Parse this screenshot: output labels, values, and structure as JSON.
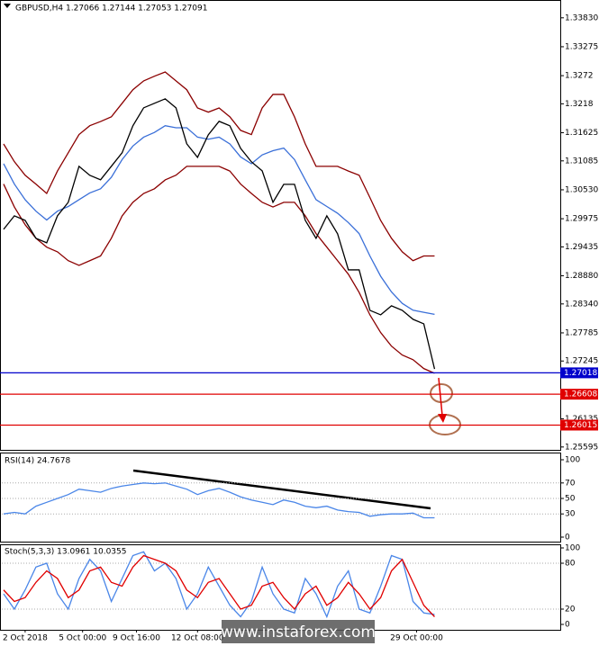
{
  "chart_data": [
    {
      "type": "line",
      "title": "GBPUSD,H4  1.27066 1.27144 1.27053 1.27091",
      "x": [
        0,
        3,
        6,
        9,
        12,
        15,
        18,
        21,
        24,
        27,
        30,
        33,
        36,
        39,
        42,
        45,
        48,
        51,
        54,
        57,
        60,
        63,
        66,
        69,
        72,
        75,
        78,
        81,
        84,
        87,
        90,
        93,
        96,
        99,
        102,
        105,
        108,
        111,
        114,
        117,
        120
      ],
      "xlim": [
        -0.5,
        155
      ],
      "xticks": [
        {
          "value": 6,
          "label": "2 Oct 2018"
        },
        {
          "value": 22,
          "label": "5 Oct 00:00"
        },
        {
          "value": 37,
          "label": "9 Oct 16:00"
        },
        {
          "value": 54,
          "label": "12 Oct 08:00"
        },
        {
          "value": 115,
          "label": "29 Oct 00:00"
        }
      ],
      "ylim": [
        1.2554,
        1.3412
      ],
      "yticks": [
        {
          "value": 1.3383,
          "label": "1.33830"
        },
        1.33275,
        1.3272,
        1.3218,
        1.31625,
        1.31085,
        {
          "value": 1.3053,
          "label": "1.30530"
        },
        1.29975,
        1.29435,
        {
          "value": 1.2888,
          "label": "1.28880"
        },
        {
          "value": 1.2834,
          "label": "1.28340"
        },
        1.27785,
        1.27245,
        1.26135,
        1.25595
      ],
      "series": [
        {
          "color": "#8b0000",
          "values": [
            1.3141,
            1.3107,
            1.3081,
            1.3064,
            1.3046,
            1.3089,
            1.3124,
            1.3159,
            1.3176,
            1.3184,
            1.3193,
            1.3219,
            1.3245,
            1.3262,
            1.3271,
            1.3279,
            1.3262,
            1.3245,
            1.321,
            1.3202,
            1.321,
            1.3193,
            1.3167,
            1.3159,
            1.321,
            1.3236,
            1.3236,
            1.3193,
            1.3141,
            1.3098,
            1.3098,
            1.3098,
            1.3089,
            1.3081,
            1.3038,
            1.2994,
            1.296,
            1.2934,
            1.2917,
            1.2926,
            1.2926
          ]
        },
        {
          "color": "#8b0000",
          "values": [
            1.3064,
            1.302,
            1.2986,
            1.296,
            1.2943,
            1.2934,
            1.2917,
            1.2908,
            1.2917,
            1.2926,
            1.296,
            1.3003,
            1.3029,
            1.3046,
            1.3055,
            1.3072,
            1.3081,
            1.3098,
            1.3098,
            1.3098,
            1.3098,
            1.3089,
            1.3064,
            1.3046,
            1.3029,
            1.302,
            1.3029,
            1.3029,
            1.3003,
            1.2969,
            1.2943,
            1.2917,
            1.2891,
            1.2856,
            1.2813,
            1.2779,
            1.2753,
            1.2736,
            1.2727,
            1.271,
            1.2701
          ]
        },
        {
          "color": "#3a6fd8",
          "values": [
            1.3103,
            1.3064,
            1.3034,
            1.3012,
            1.2995,
            1.3012,
            1.3021,
            1.3034,
            1.3047,
            1.3055,
            1.3077,
            1.3111,
            1.3137,
            1.3154,
            1.3163,
            1.3176,
            1.3172,
            1.3172,
            1.3154,
            1.315,
            1.3154,
            1.3141,
            1.3116,
            1.3103,
            1.312,
            1.3128,
            1.3133,
            1.3111,
            1.3072,
            1.3034,
            1.3021,
            1.3008,
            1.299,
            1.2969,
            1.2926,
            1.2887,
            1.2857,
            1.2835,
            1.2822,
            1.2818,
            1.2814
          ]
        },
        {
          "color": "#000000",
          "values": [
            1.29772,
            1.30031,
            1.29944,
            1.29599,
            1.29513,
            1.30031,
            1.3029,
            1.30981,
            1.30808,
            1.30722,
            1.30981,
            1.3124,
            1.31758,
            1.32103,
            1.3219,
            1.32276,
            1.32103,
            1.31412,
            1.31153,
            1.31585,
            1.31844,
            1.31758,
            1.31326,
            1.31067,
            1.30894,
            1.3029,
            1.30635,
            1.30635,
            1.29944,
            1.29599,
            1.30031,
            1.29685,
            1.28994,
            1.28994,
            1.28217,
            1.28131,
            1.28304,
            1.28217,
            1.28045,
            1.27958,
            1.27091
          ]
        }
      ],
      "levels": [
        {
          "value": 1.27018,
          "color": "#0000cc"
        },
        {
          "value": 1.26608,
          "color": "#e00000"
        },
        {
          "value": 1.26015,
          "color": "#e00000"
        }
      ]
    },
    {
      "type": "line",
      "title": "RSI(14) 24.7678",
      "x": [
        0,
        3,
        6,
        9,
        12,
        15,
        18,
        21,
        24,
        27,
        30,
        33,
        36,
        39,
        42,
        45,
        48,
        51,
        54,
        57,
        60,
        63,
        66,
        69,
        72,
        75,
        78,
        81,
        84,
        87,
        90,
        93,
        96,
        99,
        102,
        105,
        108,
        111,
        114,
        117,
        120
      ],
      "xlim": [
        -0.5,
        155
      ],
      "ylim": [
        0,
        100
      ],
      "yticks": [
        100,
        70,
        50,
        30,
        0
      ],
      "series": [
        {
          "color": "#4a86e8",
          "values": [
            30,
            32,
            30,
            40,
            45,
            50,
            55,
            62,
            60,
            58,
            63,
            66,
            68,
            70,
            69,
            70,
            66,
            62,
            55,
            60,
            63,
            58,
            52,
            48,
            45,
            42,
            48,
            45,
            40,
            38,
            40,
            35,
            33,
            32,
            27,
            29,
            30,
            30,
            31,
            25,
            25
          ]
        }
      ]
    },
    {
      "type": "line",
      "title": "Stoch(5,3,3) 13.0961 10.0355",
      "x": [
        0,
        3,
        6,
        9,
        12,
        15,
        18,
        21,
        24,
        27,
        30,
        33,
        36,
        39,
        42,
        45,
        48,
        51,
        54,
        57,
        60,
        63,
        66,
        69,
        72,
        75,
        78,
        81,
        84,
        87,
        90,
        93,
        96,
        99,
        102,
        105,
        108,
        111,
        114,
        117,
        120
      ],
      "xlim": [
        -0.5,
        155
      ],
      "ylim": [
        0,
        100
      ],
      "yticks": [
        100,
        80,
        20,
        0
      ],
      "series": [
        {
          "color": "#4a86e8",
          "values": [
            40,
            20,
            45,
            75,
            80,
            40,
            20,
            60,
            85,
            70,
            30,
            60,
            90,
            95,
            70,
            80,
            60,
            20,
            40,
            75,
            50,
            25,
            10,
            30,
            75,
            40,
            20,
            15,
            60,
            40,
            10,
            50,
            70,
            20,
            15,
            50,
            90,
            85,
            30,
            15,
            13
          ]
        },
        {
          "color": "#e00000",
          "values": [
            45,
            30,
            35,
            55,
            70,
            60,
            35,
            45,
            70,
            75,
            55,
            50,
            75,
            90,
            85,
            80,
            70,
            45,
            35,
            55,
            60,
            40,
            20,
            25,
            50,
            55,
            35,
            20,
            40,
            50,
            25,
            35,
            55,
            40,
            20,
            35,
            70,
            85,
            55,
            25,
            10
          ]
        }
      ]
    }
  ],
  "watermark": "www.instaforex.com"
}
